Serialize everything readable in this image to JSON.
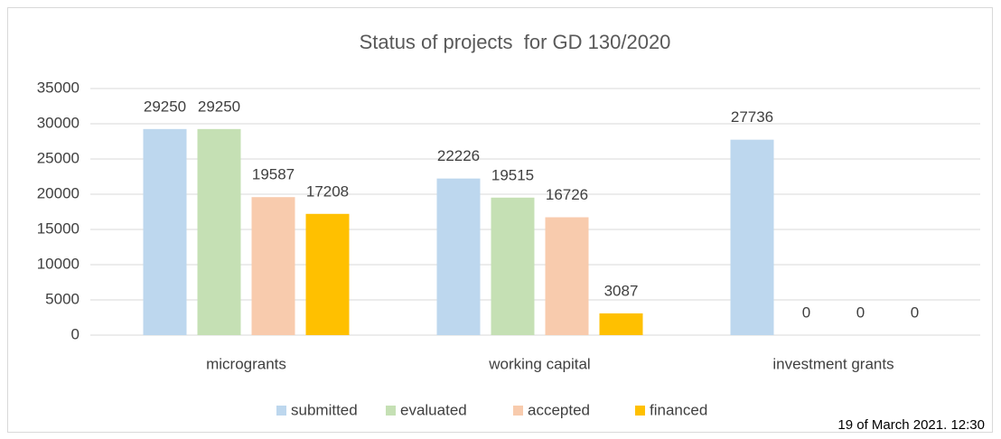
{
  "chart_data": {
    "type": "bar",
    "title": "Status of projects  for GD 130/2020",
    "annotation": "19 of March 2021. 12:30",
    "categories": [
      "microgrants",
      "working capital",
      "investment grants"
    ],
    "series": [
      {
        "name": "submitted",
        "color": "#bdd7ee",
        "values": [
          29250,
          22226,
          27736
        ]
      },
      {
        "name": "evaluated",
        "color": "#c5e0b4",
        "values": [
          29250,
          19515,
          0
        ]
      },
      {
        "name": "accepted",
        "color": "#f8cbad",
        "values": [
          19587,
          16726,
          0
        ]
      },
      {
        "name": "financed",
        "color": "#ffc000",
        "values": [
          17208,
          3087,
          0
        ]
      }
    ],
    "ylim": [
      0,
      35000
    ],
    "yticks": [
      0,
      5000,
      10000,
      15000,
      20000,
      25000,
      30000,
      35000
    ],
    "grid": true,
    "legend": "bottom"
  }
}
